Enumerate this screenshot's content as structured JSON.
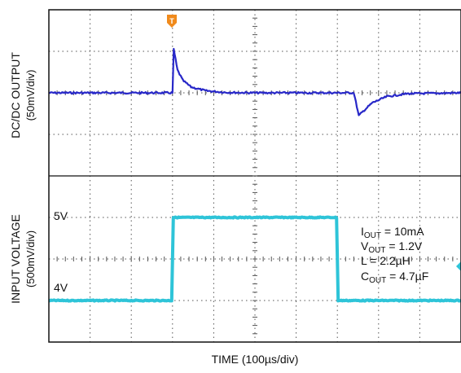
{
  "chart_data": {
    "type": "line",
    "title": "",
    "xlabel": "TIME (100µs/div)",
    "x_divisions": 10,
    "y_divisions": 8,
    "grid": true,
    "trigger_marker": "T",
    "panels": [
      {
        "name": "output",
        "ylabel": "DC/DC OUTPUT",
        "ylabel_units": "(50mV/div)",
        "color": "#2828c8",
        "y_units": "div",
        "baseline_div": 2,
        "series": {
          "x_div": [
            0,
            3.0,
            3.03,
            3.12,
            3.25,
            3.45,
            3.8,
            4.3,
            5.0,
            6.0,
            7.0,
            7.4,
            7.52,
            7.65,
            7.85,
            8.2,
            8.7,
            10
          ],
          "y_div": [
            0,
            0,
            1.05,
            0.55,
            0.3,
            0.14,
            0.05,
            0.01,
            0,
            0,
            0,
            0,
            -0.55,
            -0.42,
            -0.24,
            -0.09,
            -0.02,
            0
          ]
        }
      },
      {
        "name": "input",
        "ylabel": "INPUT VOLTAGE",
        "ylabel_units": "(500mV/div)",
        "color": "#2ec4d8",
        "y_units": "div",
        "level_labels": [
          "5V",
          "4V"
        ],
        "series": {
          "x_div": [
            0,
            2.98,
            3.02,
            6.98,
            7.02,
            10
          ],
          "y_div": [
            1.0,
            1.0,
            3.0,
            3.0,
            1.0,
            1.0
          ]
        }
      }
    ],
    "annotations": [
      {
        "main": "I",
        "sub": "OUT",
        "rest": " = 10mA"
      },
      {
        "main": "V",
        "sub": "OUT",
        "rest": " = 1.2V"
      },
      {
        "main": "L = 2.2µH",
        "sub": "",
        "rest": ""
      },
      {
        "main": "C",
        "sub": "OUT",
        "rest": " = 4.7µF"
      }
    ],
    "colors": {
      "frame": "#111111",
      "grid": "#555555",
      "trigger": "#f08a1c"
    }
  }
}
